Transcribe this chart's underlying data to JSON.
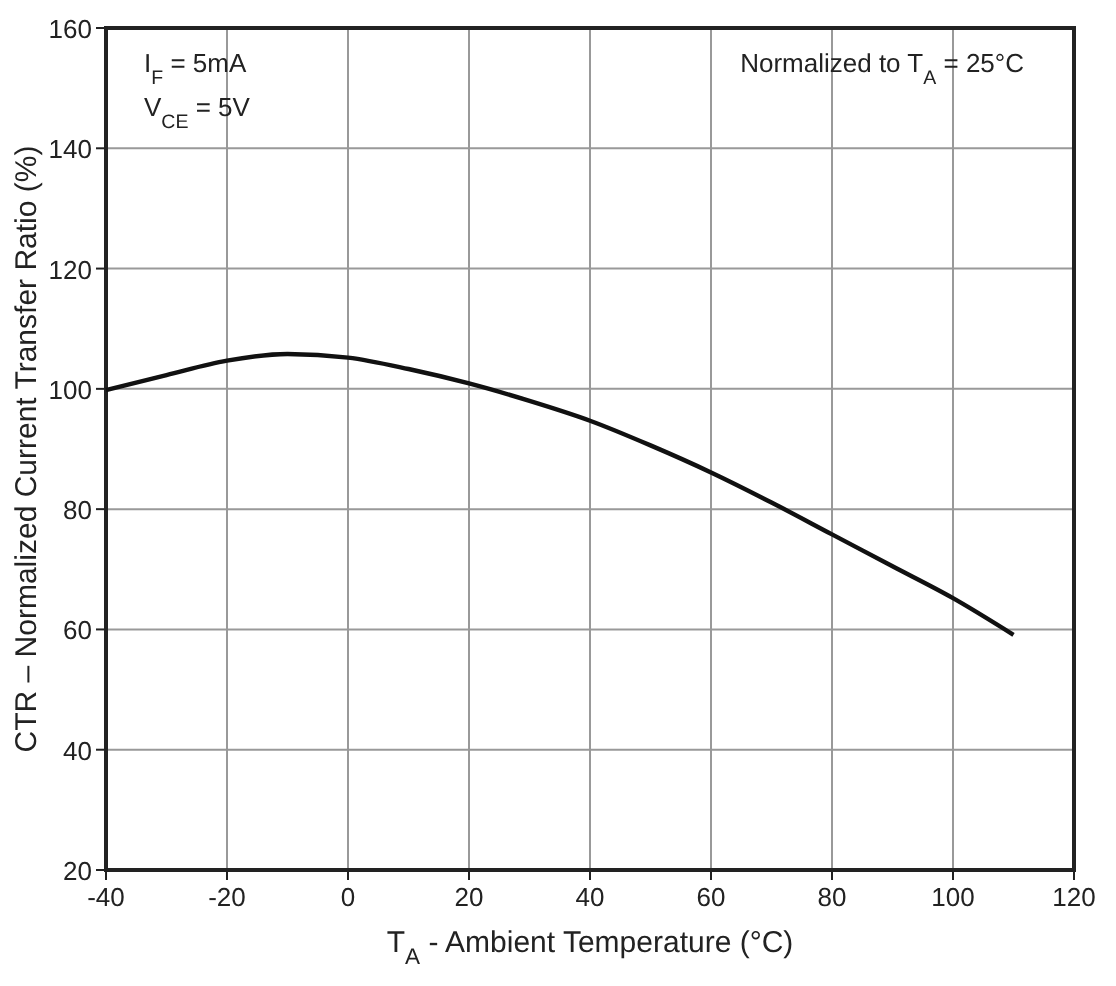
{
  "chart_data": {
    "type": "line",
    "xlabel": "T$_{A}$ - Ambient Temperature (°C)",
    "ylabel": "CTR – Normalized Current Transfer Ratio (%)",
    "x": [
      -40,
      -30,
      -20,
      -10,
      0,
      10,
      20,
      30,
      40,
      50,
      60,
      70,
      80,
      90,
      100,
      110
    ],
    "series": [
      {
        "color": "#111111",
        "values": [
          99.8,
          102.3,
          104.7,
          105.8,
          105.2,
          103.3,
          100.9,
          98,
          94.7,
          90.6,
          86.1,
          81.1,
          75.8,
          70.5,
          65.2,
          59.1
        ]
      }
    ],
    "xlim": [
      -40,
      120
    ],
    "xticks": [
      -40,
      -20,
      0,
      20,
      40,
      60,
      80,
      100,
      120
    ],
    "ylim": [
      20,
      160
    ],
    "yticks": [
      20,
      40,
      60,
      80,
      100,
      120,
      140,
      160
    ],
    "grid": true,
    "marker": "none",
    "line_style": "solid",
    "annotations": [
      "I$_{F}$ = 5mA",
      "V$_{CE}$ = 5V",
      "Normalized to T$_{A}$ = 25°C"
    ]
  }
}
